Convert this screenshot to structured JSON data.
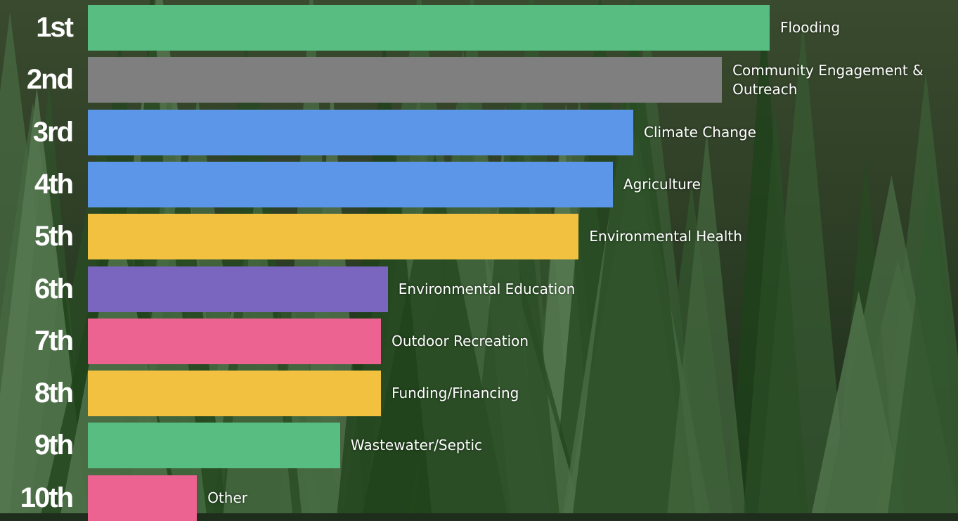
{
  "chart_data": {
    "type": "bar",
    "orientation": "horizontal",
    "categories": [
      "1st",
      "2nd",
      "3rd",
      "4th",
      "5th",
      "6th",
      "7th",
      "8th",
      "9th",
      "10th"
    ],
    "labels": [
      "Flooding",
      "Community Engagement & Outreach",
      "Climate Change",
      "Agriculture",
      "Environmental Health",
      "Environmental Education",
      "Outdoor Recreation",
      "Funding/Financing",
      "Wastewater/Septic",
      "Other"
    ],
    "values": [
      100,
      93,
      80,
      77,
      72,
      44,
      43,
      43,
      37,
      16
    ],
    "colors": [
      "#57bd80",
      "#7f7f7f",
      "#5b96e8",
      "#5b96e8",
      "#f2c13f",
      "#7b66bf",
      "#ec6290",
      "#f2c13f",
      "#57bd80",
      "#ec6290"
    ]
  }
}
